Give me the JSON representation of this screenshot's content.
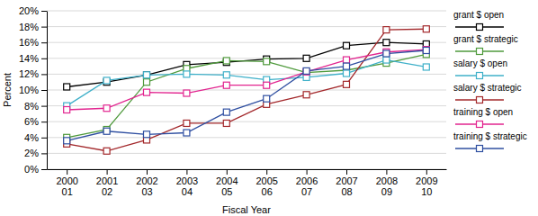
{
  "chart_data": {
    "type": "line",
    "x_label": "Fiscal Year",
    "y_label": "Percent",
    "categories": [
      "2000 01",
      "2001 02",
      "2002 03",
      "2003 04",
      "2004 05",
      "2005 06",
      "2006 07",
      "2007 08",
      "2008 09",
      "2009 10"
    ],
    "series": [
      {
        "name": "grant $ open",
        "color": "#000000",
        "values": [
          10.4,
          11.0,
          11.9,
          13.2,
          13.5,
          13.9,
          14.0,
          15.6,
          16.0,
          15.8
        ]
      },
      {
        "name": "grant $ strategic",
        "color": "#4f9a3c",
        "values": [
          4.0,
          5.0,
          11.0,
          12.7,
          13.7,
          13.6,
          12.2,
          12.5,
          13.4,
          14.5
        ]
      },
      {
        "name": "salary $ open",
        "color": "#3fb0c9",
        "values": [
          8.0,
          11.2,
          11.9,
          12.0,
          11.9,
          11.3,
          11.6,
          12.1,
          13.8,
          12.9
        ]
      },
      {
        "name": "salary $ strategic",
        "color": "#a3282b",
        "values": [
          3.2,
          2.3,
          3.7,
          5.8,
          5.8,
          8.2,
          9.4,
          10.7,
          17.6,
          17.7
        ]
      },
      {
        "name": "training $ open",
        "color": "#e2248f",
        "values": [
          7.5,
          7.7,
          9.7,
          9.6,
          10.6,
          10.6,
          12.3,
          13.8,
          14.8,
          15.1
        ]
      },
      {
        "name": "training $ strategic",
        "color": "#2f4fa1",
        "values": [
          3.6,
          4.8,
          4.4,
          4.6,
          7.2,
          8.9,
          12.4,
          13.0,
          14.6,
          15.0
        ]
      }
    ],
    "ylim": [
      0,
      20
    ],
    "yticks": [
      {
        "value": 0,
        "label": "0%"
      },
      {
        "value": 2,
        "label": "2%"
      },
      {
        "value": 4,
        "label": "4%"
      },
      {
        "value": 6,
        "label": "6%"
      },
      {
        "value": 8,
        "label": "8%"
      },
      {
        "value": 10,
        "label": "10%"
      },
      {
        "value": 12,
        "label": "12%"
      },
      {
        "value": 14,
        "label": "14%"
      },
      {
        "value": 16,
        "label": "16%"
      },
      {
        "value": 18,
        "label": "18%"
      },
      {
        "value": 20,
        "label": "20%"
      }
    ],
    "grid": true,
    "legend": "right",
    "marker": "square",
    "line_style": "solid"
  }
}
